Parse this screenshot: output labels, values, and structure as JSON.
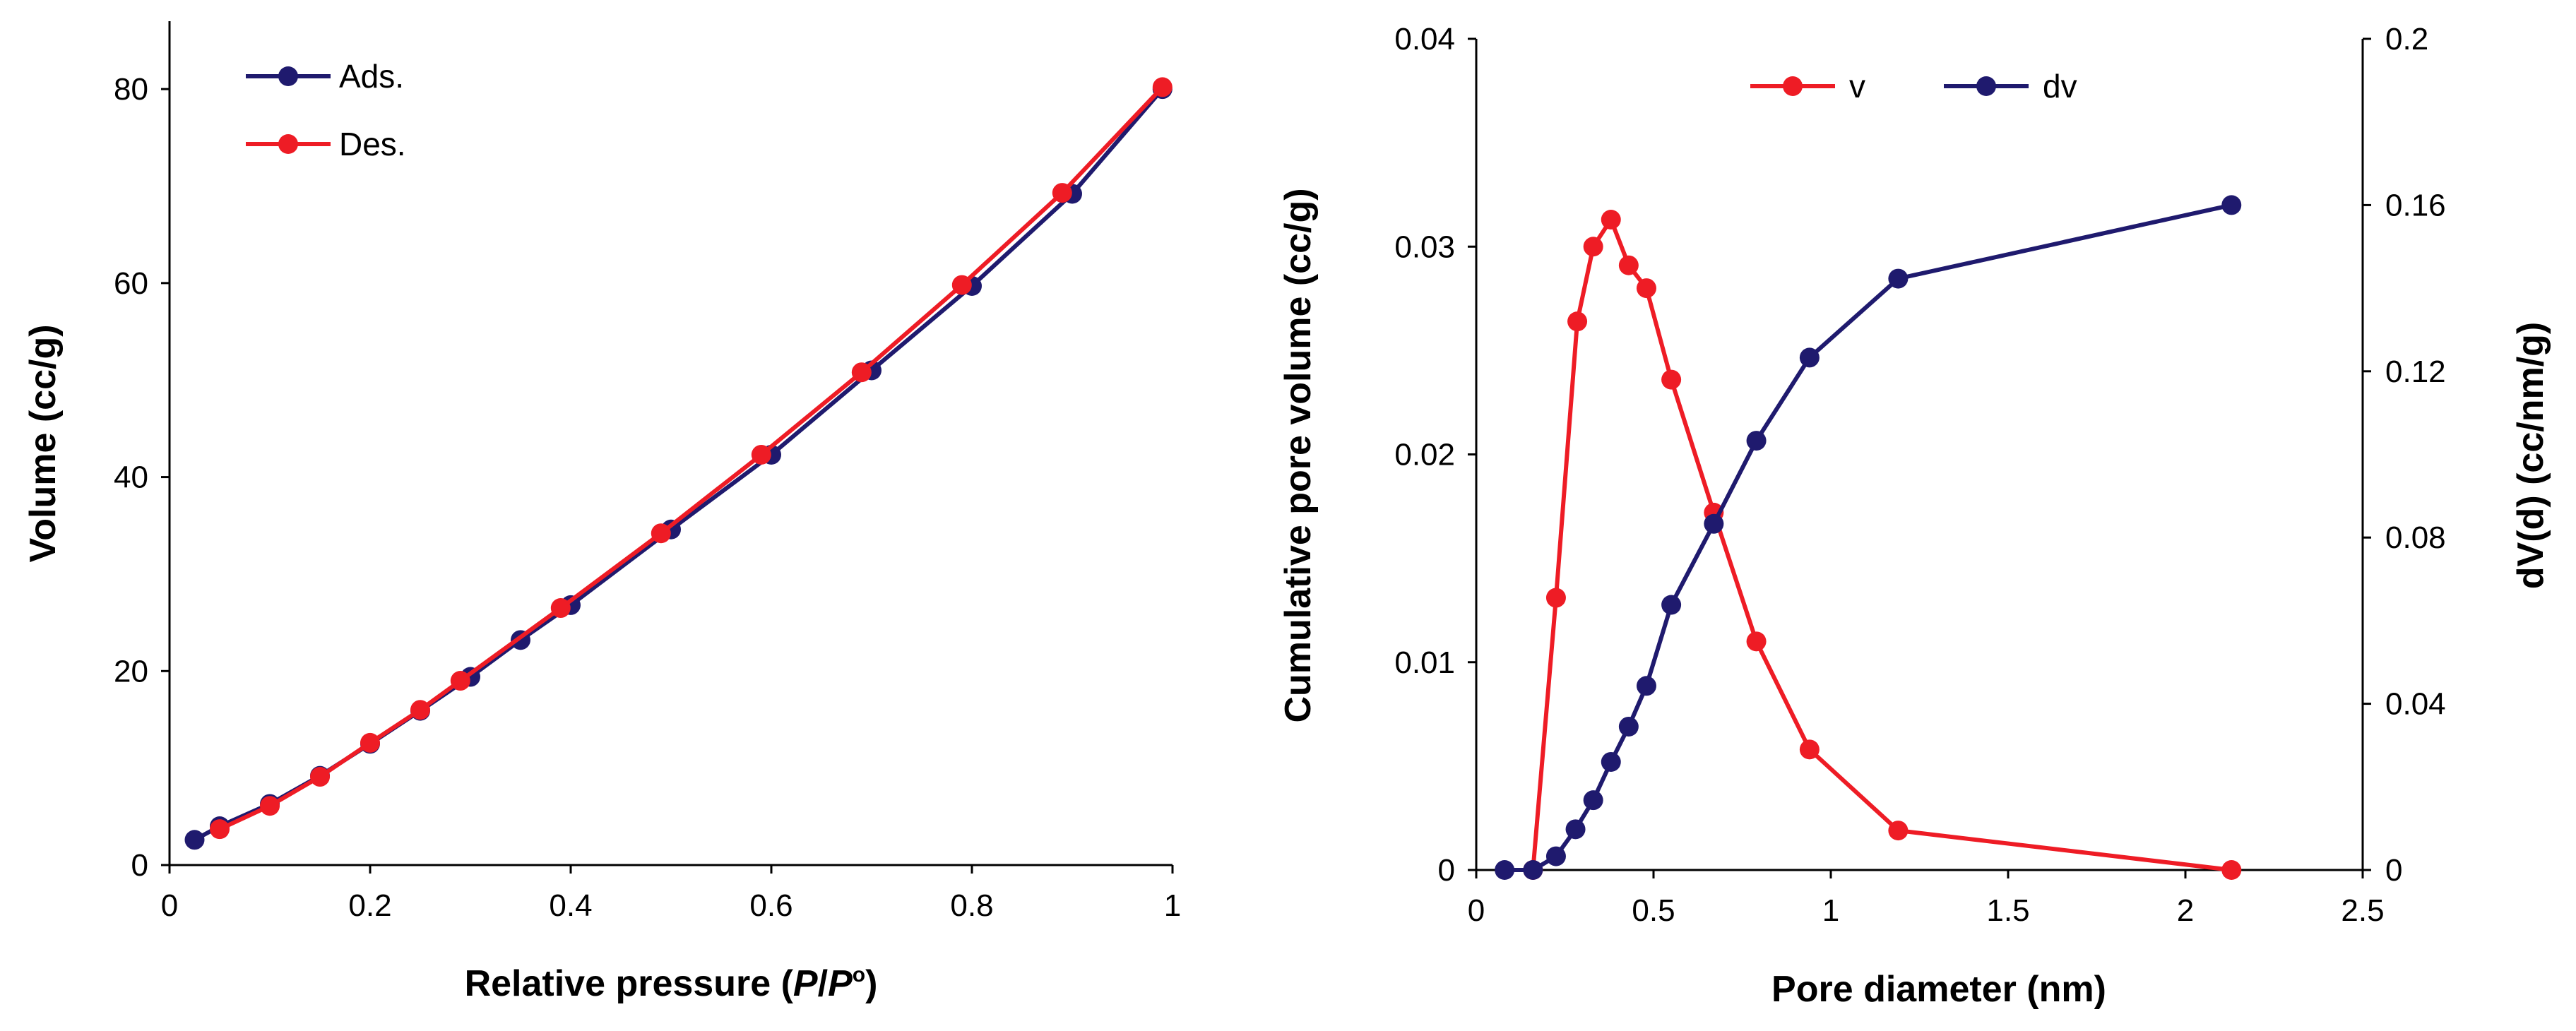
{
  "chart_data": [
    {
      "type": "line",
      "xlabel_text": "Relative pressure (",
      "xlabel_var_P": "P",
      "xlabel_slash": "/",
      "xlabel_var_P0": "P",
      "xlabel_sup": "o",
      "xlabel_close": ")",
      "ylabel": "Volume (cc/g)",
      "xlim": [
        0,
        1
      ],
      "ylim": [
        0,
        87
      ],
      "x_ticks": [
        0,
        0.2,
        0.4,
        0.6,
        0.8,
        1
      ],
      "x_tick_labels": [
        "0",
        "0.2",
        "0.4",
        "0.6",
        "0.8",
        "1"
      ],
      "y_ticks": [
        0,
        20,
        40,
        60,
        80
      ],
      "y_tick_labels": [
        "0",
        "20",
        "40",
        "60",
        "80"
      ],
      "legend_position": "top-left",
      "series": [
        {
          "name": "Ads.",
          "color": "#1f1a6e",
          "x": [
            0.025,
            0.05,
            0.1,
            0.15,
            0.2,
            0.25,
            0.3,
            0.35,
            0.4,
            0.5,
            0.6,
            0.7,
            0.8,
            0.9,
            0.99
          ],
          "y": [
            2.6,
            4.0,
            6.3,
            9.2,
            12.5,
            15.9,
            19.4,
            23.2,
            26.8,
            34.6,
            42.3,
            51.0,
            59.7,
            69.2,
            80.0
          ]
        },
        {
          "name": "Des.",
          "color": "#ee1c25",
          "x": [
            0.05,
            0.1,
            0.15,
            0.2,
            0.25,
            0.29,
            0.39,
            0.49,
            0.59,
            0.69,
            0.79,
            0.89,
            0.99
          ],
          "y": [
            3.7,
            6.1,
            9.1,
            12.6,
            16.0,
            19.0,
            26.5,
            34.2,
            42.3,
            50.8,
            59.8,
            69.3,
            80.2
          ]
        }
      ]
    },
    {
      "type": "line",
      "xlabel": "Pore diameter (nm)",
      "ylabel": "Cumulative pore volume (cc/g)",
      "ylabel_right": "dV(d) (cc/nm/g)",
      "xlim": [
        0,
        2.5
      ],
      "ylim": [
        0,
        0.04
      ],
      "ylim_right": [
        0,
        0.2
      ],
      "x_ticks": [
        0,
        0.5,
        1,
        1.5,
        2,
        2.5
      ],
      "x_tick_labels": [
        "0",
        "0.5",
        "1",
        "1.5",
        "2",
        "2.5"
      ],
      "y_ticks": [
        0,
        0.01,
        0.02,
        0.03,
        0.04
      ],
      "y_tick_labels": [
        "0",
        "0.01",
        "0.02",
        "0.03",
        "0.04"
      ],
      "y_ticks_right": [
        0,
        0.04,
        0.08,
        0.12,
        0.16,
        0.2
      ],
      "y_tick_labels_right": [
        "0",
        "0.04",
        "0.08",
        "0.12",
        "0.16",
        "0.2"
      ],
      "legend_position": "top-center",
      "series": [
        {
          "name": "v",
          "color": "#ee1c25",
          "axis": "left",
          "x": [
            0.16,
            0.225,
            0.285,
            0.33,
            0.38,
            0.43,
            0.48,
            0.55,
            0.67,
            0.79,
            0.94,
            1.19,
            2.13
          ],
          "y": [
            0.0,
            0.0131,
            0.0264,
            0.03,
            0.0313,
            0.0291,
            0.028,
            0.0236,
            0.0172,
            0.011,
            0.0058,
            0.0019,
            0.0
          ]
        },
        {
          "name": "dv",
          "color": "#1f1a6e",
          "axis": "right",
          "x": [
            0.08,
            0.16,
            0.225,
            0.28,
            0.33,
            0.38,
            0.43,
            0.48,
            0.55,
            0.67,
            0.79,
            0.94,
            1.19,
            2.13
          ],
          "y": [
            0.0,
            0.0,
            0.0033,
            0.0098,
            0.0168,
            0.026,
            0.0345,
            0.0443,
            0.0638,
            0.0833,
            0.1033,
            0.1233,
            0.1423,
            0.16
          ]
        }
      ]
    }
  ]
}
